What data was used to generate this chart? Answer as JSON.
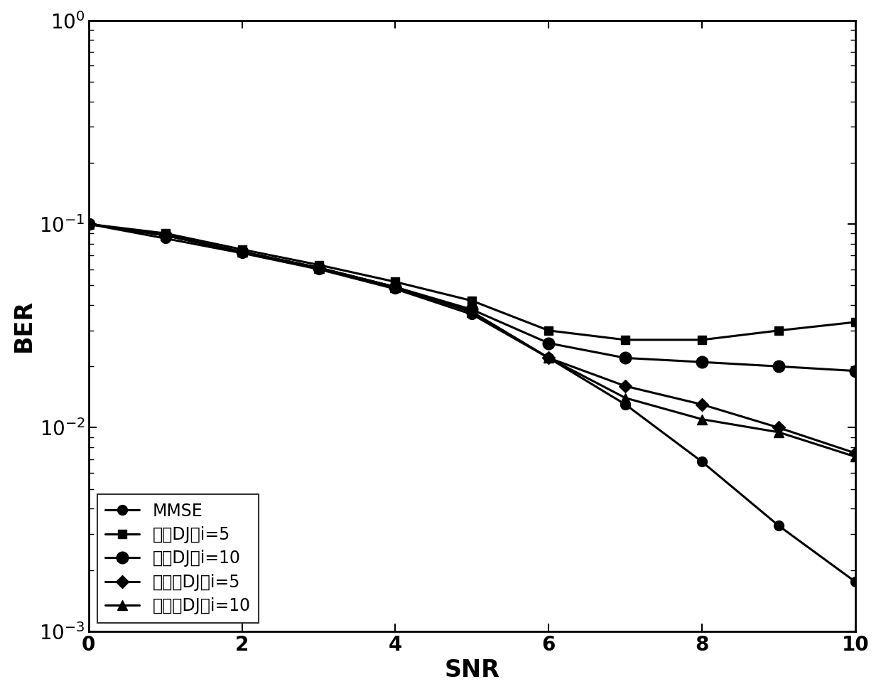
{
  "snr": [
    0,
    1,
    2,
    3,
    4,
    5,
    6,
    7,
    8,
    9,
    10
  ],
  "mmse": [
    0.1,
    0.085,
    0.072,
    0.06,
    0.048,
    0.036,
    0.022,
    0.013,
    0.0068,
    0.0033,
    0.00175
  ],
  "trad_dj_i5": [
    0.1,
    0.09,
    0.075,
    0.063,
    0.052,
    0.042,
    0.03,
    0.027,
    0.027,
    0.03,
    0.033
  ],
  "trad_dj_i10": [
    0.1,
    0.088,
    0.073,
    0.061,
    0.049,
    0.038,
    0.026,
    0.022,
    0.021,
    0.02,
    0.019
  ],
  "adap_dj_i5": [
    0.1,
    0.088,
    0.073,
    0.061,
    0.049,
    0.037,
    0.022,
    0.016,
    0.013,
    0.01,
    0.0075
  ],
  "adap_dj_i10": [
    0.1,
    0.088,
    0.073,
    0.061,
    0.049,
    0.037,
    0.022,
    0.014,
    0.011,
    0.0095,
    0.0072
  ],
  "xlabel": "SNR",
  "ylabel": "BER",
  "xlim": [
    0,
    10
  ],
  "ylim_low": 0.001,
  "ylim_high": 1.0,
  "legend_labels": [
    "MMSE",
    "传统DJ，i=5",
    "传统DJ，i=10",
    "自适应DJ，i=5",
    "自适应DJ，i=10"
  ],
  "line_color": "#000000",
  "linewidth": 2.2,
  "markersize": 10,
  "background_color": "#ffffff",
  "tick_fontsize": 20,
  "label_fontsize": 24,
  "legend_fontsize": 17
}
